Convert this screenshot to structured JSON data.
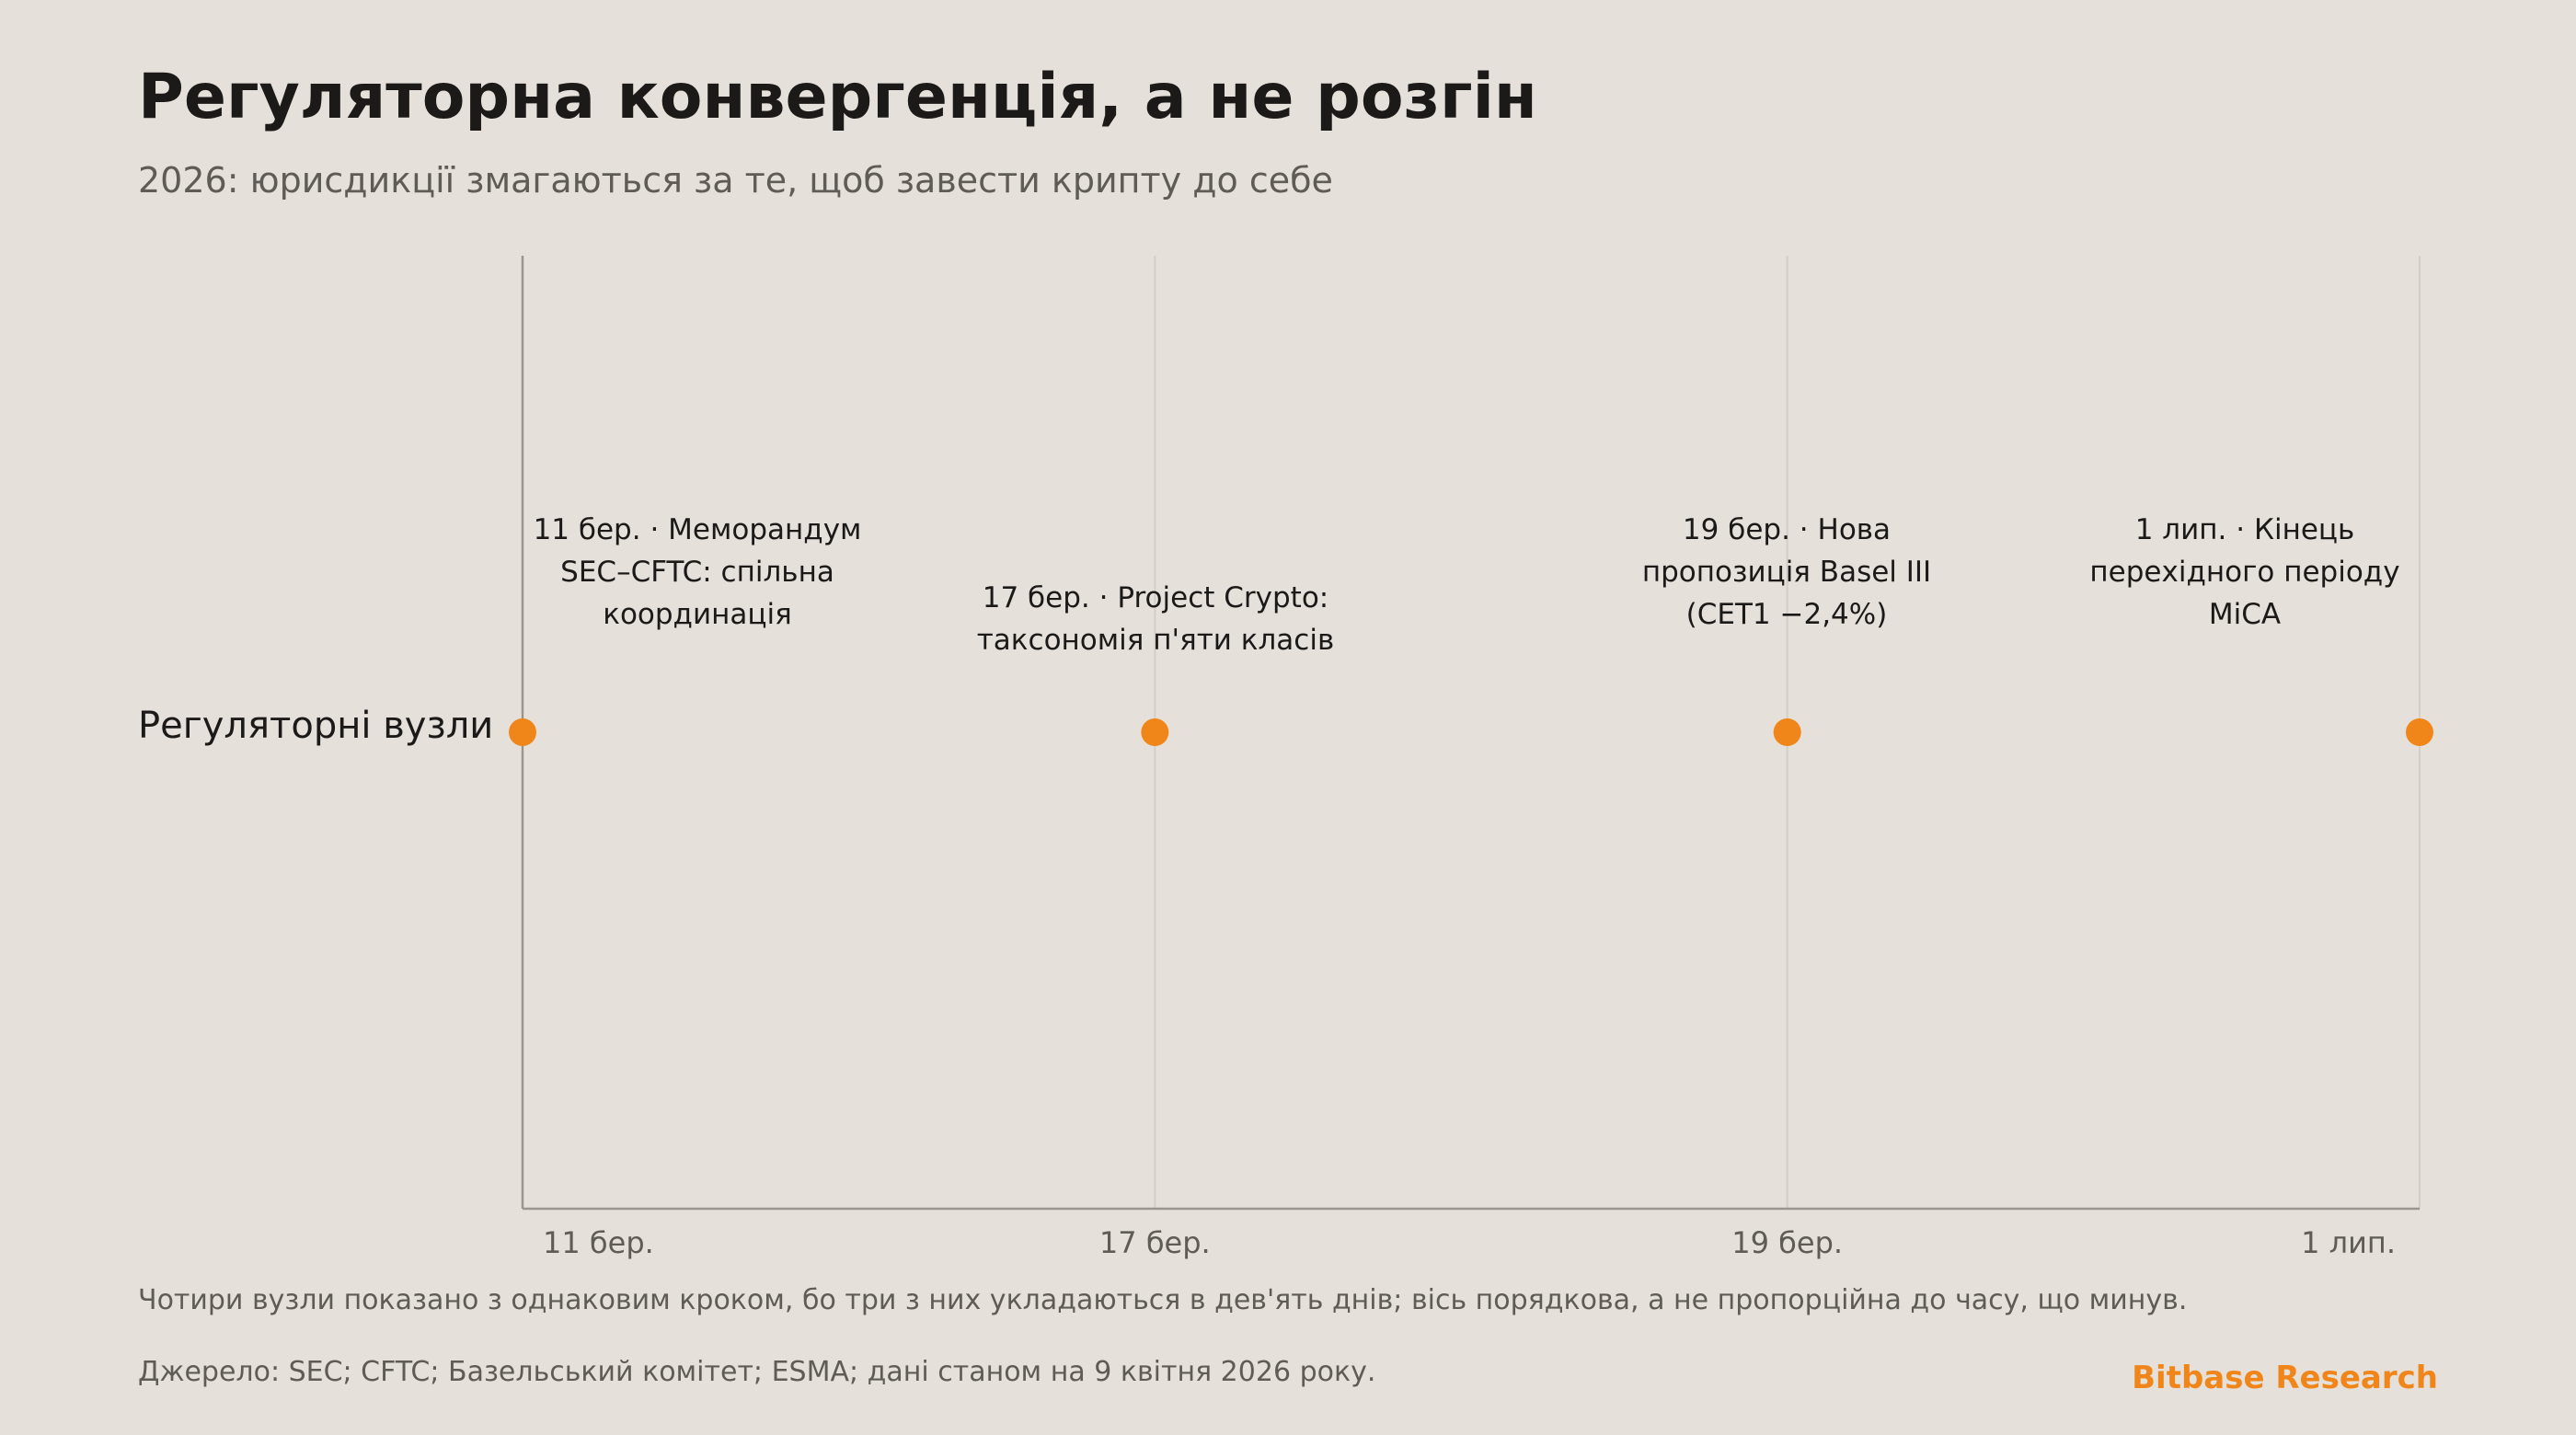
{
  "header": {
    "title": "Регуляторна конвергенція, а не розгін",
    "subtitle": "2026: юрисдикції змагаються за те, щоб завести крипту до себе"
  },
  "chart_data": {
    "type": "scatter",
    "row_label": "Регуляторні вузли",
    "x": [
      "11 бер.",
      "17 бер.",
      "19 бер.",
      "1 лип."
    ],
    "events": [
      {
        "tick": "11 бер.",
        "label_lines": [
          "11 бер. · Меморандум",
          "SEC–CFTC: спільна",
          "координація"
        ]
      },
      {
        "tick": "17 бер.",
        "label_lines": [
          "17 бер. · Project Crypto:",
          "таксономія п'яти класів"
        ]
      },
      {
        "tick": "19 бер.",
        "label_lines": [
          "19 бер. · Нова",
          "пропозиція Basel III",
          "(CET1 −2,4%)"
        ]
      },
      {
        "tick": "1 лип.",
        "label_lines": [
          "1 лип. · Кінець",
          "перехідного періоду",
          "MiCA"
        ]
      }
    ],
    "marker_color": "#f0861a",
    "grid": true
  },
  "footer": {
    "note": "Чотири вузли показано з однаковим кроком, бо три з них укладаються в дев'ять днів; вісь порядкова, а не пропорційна до часу, що минув.",
    "source": "Джерело: SEC; CFTC; Базельський комітет; ESMA; дані станом на 9 квітня 2026 року.",
    "brand": "Bitbase Research",
    "brand_color": "#f0861a"
  }
}
